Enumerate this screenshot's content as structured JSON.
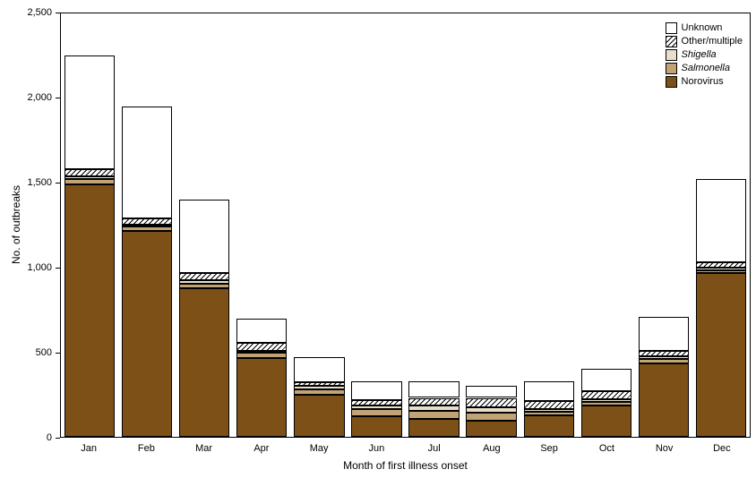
{
  "chart_data": {
    "type": "bar",
    "stacked": true,
    "title": "",
    "xlabel": "Month of first illness onset",
    "ylabel": "No. of outbreaks",
    "ylim": [
      0,
      2500
    ],
    "yticks": [
      0,
      500,
      1000,
      1500,
      2000,
      2500
    ],
    "ytick_labels": [
      "0",
      "500",
      "1,000",
      "1,500",
      "2,000",
      "2,500"
    ],
    "categories": [
      "Jan",
      "Feb",
      "Mar",
      "Apr",
      "May",
      "Jun",
      "Jul",
      "Aug",
      "Sep",
      "Oct",
      "Nov",
      "Dec"
    ],
    "grid": false,
    "legend_position": "top-right",
    "legend_order": [
      "Unknown",
      "Other/multiple",
      "Shigella",
      "Salmonella",
      "Norovirus"
    ],
    "axis_color": "#000000",
    "series": [
      {
        "name": "Norovirus",
        "italic": false,
        "color": "#7d5017",
        "pattern": "solid",
        "values": [
          1490,
          1215,
          875,
          465,
          250,
          120,
          105,
          95,
          125,
          185,
          435,
          965
        ]
      },
      {
        "name": "Salmonella",
        "italic": true,
        "color": "#c2a375",
        "pattern": "solid",
        "values": [
          30,
          25,
          30,
          30,
          30,
          45,
          50,
          50,
          25,
          20,
          25,
          20
        ]
      },
      {
        "name": "Shigella",
        "italic": true,
        "color": "#e8dfcb",
        "pattern": "solid",
        "values": [
          20,
          15,
          20,
          15,
          20,
          20,
          30,
          30,
          15,
          15,
          15,
          15
        ]
      },
      {
        "name": "Other/multiple",
        "italic": false,
        "color": "#ffffff",
        "pattern": "hatch",
        "values": [
          40,
          35,
          40,
          45,
          20,
          30,
          45,
          55,
          45,
          50,
          30,
          30
        ]
      },
      {
        "name": "Unknown",
        "italic": false,
        "color": "#ffffff",
        "pattern": "solid",
        "values": [
          670,
          660,
          435,
          145,
          150,
          115,
          100,
          70,
          120,
          130,
          205,
          490
        ]
      }
    ]
  }
}
